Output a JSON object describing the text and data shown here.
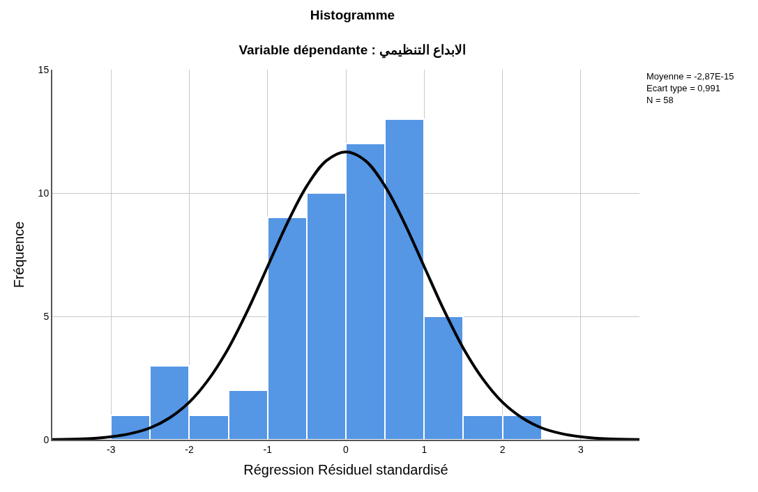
{
  "chart_data": {
    "type": "histogram",
    "title": "Histogramme",
    "subtitle": "Variable dépendante : الابداع التنظيمي",
    "xlabel": "Régression Résiduel standardisé",
    "ylabel": "Fréquence",
    "annotations": [
      "Moyenne = -2,87E-15\nEcart type = 0,991\nN = 58"
    ],
    "bins": [
      -3,
      -2.5,
      -2,
      -1.5,
      -1,
      -0.5,
      0,
      0.5,
      1,
      1.5,
      2,
      2.5
    ],
    "series": [
      {
        "color": "#5596e5",
        "values": [
          1,
          3,
          1,
          2,
          9,
          10,
          12,
          13,
          5,
          1,
          1
        ]
      },
      {
        "type": "line",
        "color": "#000000",
        "x": [
          -3.75,
          -3.5,
          -3.25,
          -3,
          -2.75,
          -2.5,
          -2.25,
          -2,
          -1.75,
          -1.5,
          -1.25,
          -1,
          -0.75,
          -0.5,
          -0.25,
          0,
          0.25,
          0.5,
          0.75,
          1,
          1.25,
          1.5,
          1.75,
          2,
          2.25,
          2.5,
          2.75,
          3,
          3.25,
          3.5,
          3.75
        ],
        "values": [
          0.01,
          0.02,
          0.05,
          0.12,
          0.25,
          0.48,
          0.89,
          1.52,
          2.46,
          3.71,
          5.27,
          7.02,
          8.77,
          10.28,
          11.31,
          11.67,
          11.31,
          10.28,
          8.77,
          7.02,
          5.27,
          3.71,
          2.46,
          1.52,
          0.89,
          0.48,
          0.25,
          0.12,
          0.05,
          0.02,
          0.01
        ]
      }
    ],
    "xlim": [
      -3.75,
      3.75
    ],
    "xticks": [
      -3,
      -2,
      -1,
      0,
      1,
      2,
      3
    ],
    "ylim": [
      0,
      15
    ],
    "yticks": [
      0,
      5,
      10,
      15
    ],
    "grid": true
  }
}
